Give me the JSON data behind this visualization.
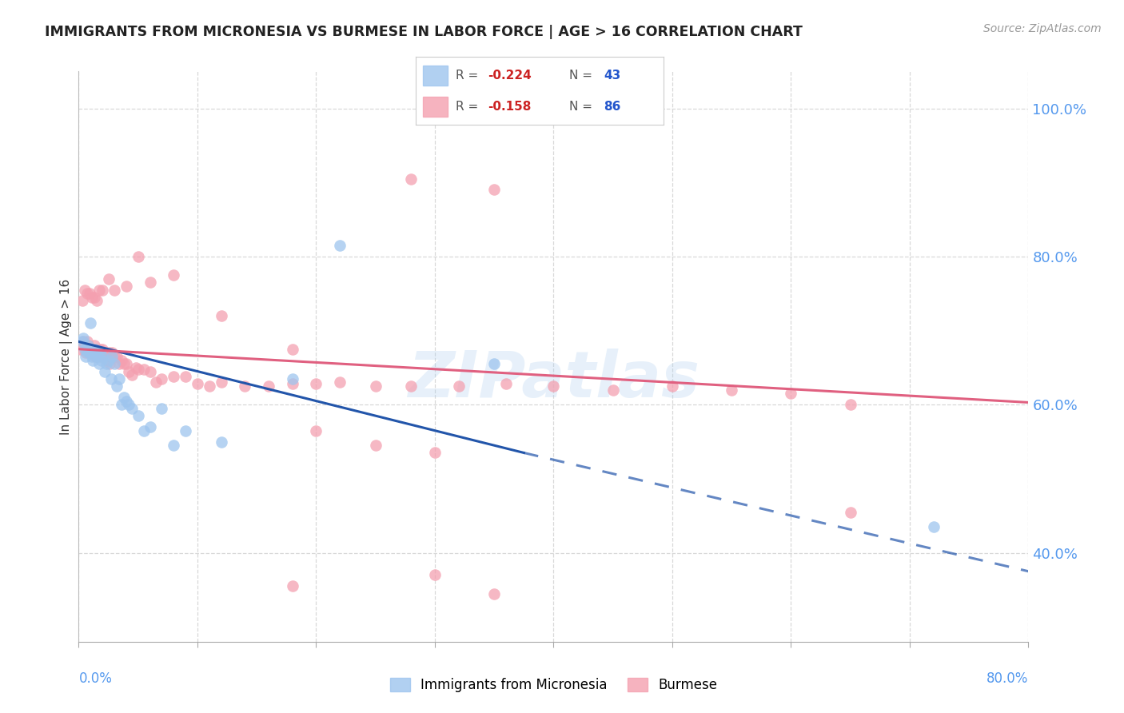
{
  "title": "IMMIGRANTS FROM MICRONESIA VS BURMESE IN LABOR FORCE | AGE > 16 CORRELATION CHART",
  "source": "Source: ZipAtlas.com",
  "ylabel": "In Labor Force | Age > 16",
  "x_ticks": [
    0.0,
    0.1,
    0.2,
    0.3,
    0.4,
    0.5,
    0.6,
    0.7,
    0.8
  ],
  "x_tick_labels_show": [
    "0.0%",
    "80.0%"
  ],
  "y_ticks_right": [
    1.0,
    0.8,
    0.6,
    0.4
  ],
  "y_tick_labels_right": [
    "100.0%",
    "80.0%",
    "60.0%",
    "40.0%"
  ],
  "xlim": [
    0.0,
    0.8
  ],
  "ylim": [
    0.28,
    1.05
  ],
  "background_color": "#ffffff",
  "grid_color": "#d8d8d8",
  "watermark": "ZIPatlas",
  "series1_color": "#9ec5ee",
  "series2_color": "#f4a0b0",
  "line1_color": "#2255aa",
  "line2_color": "#e06080",
  "title_color": "#222222",
  "right_axis_color": "#5599ee",
  "bottom_label_color": "#5599ee",
  "line1_start_x": 0.0,
  "line1_start_y": 0.685,
  "line1_end_x": 0.375,
  "line1_end_y": 0.535,
  "line1_dash_end_x": 0.8,
  "line1_dash_end_y": 0.375,
  "line2_start_x": 0.0,
  "line2_start_y": 0.675,
  "line2_end_x": 0.8,
  "line2_end_y": 0.603,
  "scatter1_x": [
    0.003,
    0.004,
    0.005,
    0.006,
    0.007,
    0.008,
    0.009,
    0.01,
    0.01,
    0.011,
    0.012,
    0.013,
    0.014,
    0.015,
    0.016,
    0.017,
    0.018,
    0.019,
    0.02,
    0.022,
    0.023,
    0.025,
    0.027,
    0.028,
    0.03,
    0.032,
    0.034,
    0.036,
    0.038,
    0.04,
    0.042,
    0.045,
    0.05,
    0.055,
    0.06,
    0.07,
    0.08,
    0.09,
    0.12,
    0.18,
    0.22,
    0.35,
    0.72
  ],
  "scatter1_y": [
    0.685,
    0.69,
    0.675,
    0.665,
    0.672,
    0.68,
    0.67,
    0.675,
    0.71,
    0.665,
    0.66,
    0.672,
    0.675,
    0.665,
    0.665,
    0.655,
    0.67,
    0.66,
    0.665,
    0.645,
    0.655,
    0.66,
    0.635,
    0.665,
    0.655,
    0.625,
    0.635,
    0.6,
    0.61,
    0.605,
    0.6,
    0.595,
    0.585,
    0.565,
    0.57,
    0.595,
    0.545,
    0.565,
    0.55,
    0.635,
    0.815,
    0.655,
    0.435
  ],
  "scatter2_x": [
    0.002,
    0.004,
    0.005,
    0.006,
    0.007,
    0.008,
    0.009,
    0.01,
    0.011,
    0.012,
    0.013,
    0.014,
    0.015,
    0.016,
    0.017,
    0.018,
    0.019,
    0.02,
    0.021,
    0.022,
    0.023,
    0.024,
    0.025,
    0.026,
    0.027,
    0.028,
    0.03,
    0.032,
    0.034,
    0.036,
    0.038,
    0.04,
    0.042,
    0.045,
    0.048,
    0.05,
    0.055,
    0.06,
    0.065,
    0.07,
    0.08,
    0.09,
    0.1,
    0.11,
    0.12,
    0.14,
    0.16,
    0.18,
    0.2,
    0.22,
    0.25,
    0.28,
    0.32,
    0.36,
    0.4,
    0.45,
    0.5,
    0.55,
    0.6,
    0.65,
    0.003,
    0.005,
    0.007,
    0.009,
    0.011,
    0.013,
    0.015,
    0.017,
    0.02,
    0.025,
    0.03,
    0.04,
    0.05,
    0.06,
    0.08,
    0.12,
    0.18,
    0.28,
    0.35,
    0.65,
    0.25,
    0.3,
    0.2,
    0.35,
    0.18,
    0.3
  ],
  "scatter2_y": [
    0.675,
    0.685,
    0.68,
    0.67,
    0.685,
    0.68,
    0.67,
    0.675,
    0.67,
    0.67,
    0.68,
    0.665,
    0.675,
    0.665,
    0.67,
    0.675,
    0.665,
    0.675,
    0.665,
    0.67,
    0.665,
    0.66,
    0.67,
    0.655,
    0.668,
    0.67,
    0.665,
    0.665,
    0.655,
    0.66,
    0.655,
    0.655,
    0.645,
    0.64,
    0.65,
    0.648,
    0.648,
    0.645,
    0.63,
    0.635,
    0.638,
    0.638,
    0.628,
    0.625,
    0.63,
    0.625,
    0.625,
    0.628,
    0.628,
    0.63,
    0.625,
    0.625,
    0.625,
    0.628,
    0.625,
    0.62,
    0.625,
    0.62,
    0.615,
    0.6,
    0.74,
    0.755,
    0.75,
    0.75,
    0.745,
    0.745,
    0.74,
    0.755,
    0.755,
    0.77,
    0.755,
    0.76,
    0.8,
    0.765,
    0.775,
    0.72,
    0.675,
    0.905,
    0.89,
    0.455,
    0.545,
    0.535,
    0.565,
    0.345,
    0.355,
    0.37
  ]
}
